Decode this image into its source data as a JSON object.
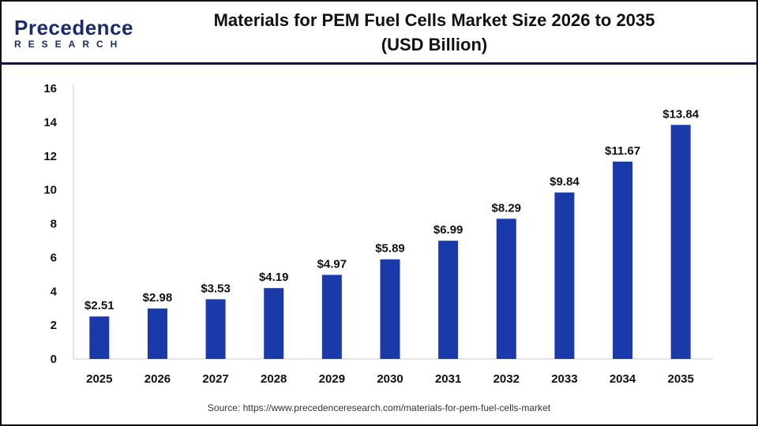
{
  "header": {
    "logo_top": "Precedence",
    "logo_bottom": "RESEARCH",
    "title_line1": "Materials for PEM Fuel Cells Market Size 2026 to 2035",
    "title_line2": "(USD Billion)"
  },
  "source": "Source: https://www.precedenceresearch.com/materials-for-pem-fuel-cells-market",
  "chart_data": {
    "type": "bar",
    "categories": [
      "2025",
      "2026",
      "2027",
      "2028",
      "2029",
      "2030",
      "2031",
      "2032",
      "2033",
      "2034",
      "2035"
    ],
    "values": [
      2.51,
      2.98,
      3.53,
      4.19,
      4.97,
      5.89,
      6.99,
      8.29,
      9.84,
      11.67,
      13.84
    ],
    "data_labels": [
      "$2.51",
      "$2.98",
      "$3.53",
      "$4.19",
      "$4.97",
      "$5.89",
      "$6.99",
      "$8.29",
      "$9.84",
      "$11.67",
      "$13.84"
    ],
    "ylim": [
      0,
      16
    ],
    "yticks": [
      0,
      2,
      4,
      6,
      8,
      10,
      12,
      14,
      16
    ],
    "grid": false,
    "bar_color": "#1a3aaa",
    "xlabel": "",
    "ylabel": ""
  }
}
